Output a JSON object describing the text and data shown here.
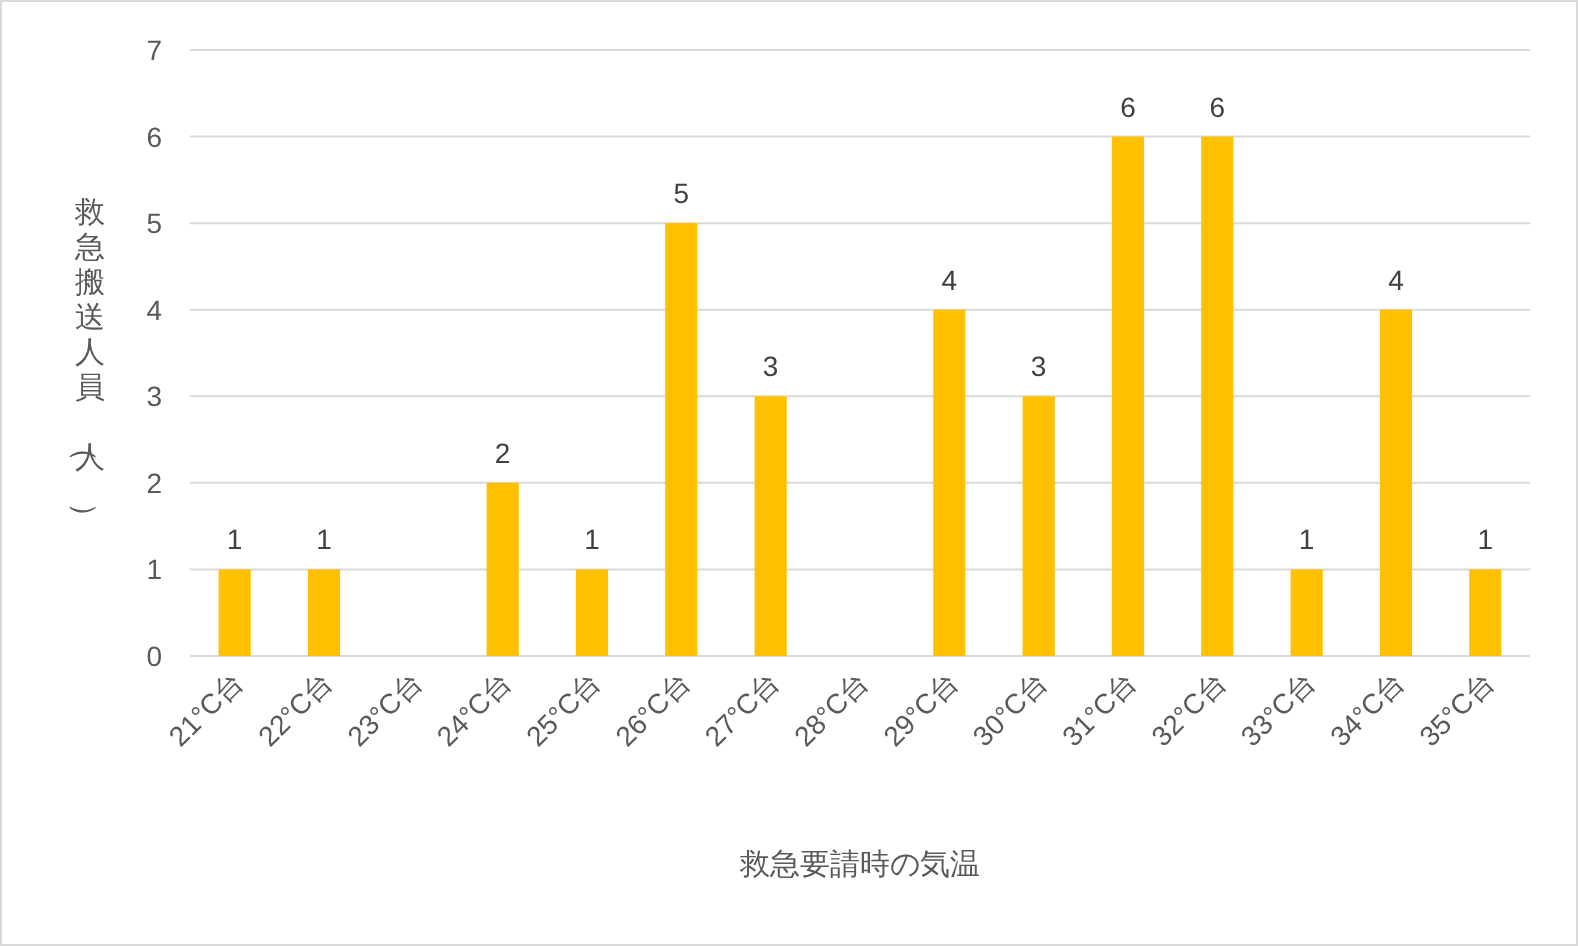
{
  "chart_data": {
    "type": "bar",
    "xlabel": "救急要請時の気温",
    "ylabel": "救急搬送人員（人）",
    "categories": [
      "21°C台",
      "22°C台",
      "23°C台",
      "24°C台",
      "25°C台",
      "26°C台",
      "27°C台",
      "28°C台",
      "29°C台",
      "30°C台",
      "31°C台",
      "32°C台",
      "33°C台",
      "34°C台",
      "35°C台"
    ],
    "values": [
      1,
      1,
      0,
      2,
      1,
      5,
      3,
      0,
      4,
      3,
      6,
      6,
      1,
      4,
      1
    ],
    "value_labels": [
      "1",
      "1",
      null,
      "2",
      "1",
      "5",
      "3",
      null,
      "4",
      "3",
      "6",
      "6",
      "1",
      "4",
      "1"
    ],
    "color": "#ffc000",
    "ylim": [
      0,
      7
    ],
    "yticks": [
      0,
      1,
      2,
      3,
      4,
      5,
      6,
      7
    ],
    "grid": "y"
  }
}
